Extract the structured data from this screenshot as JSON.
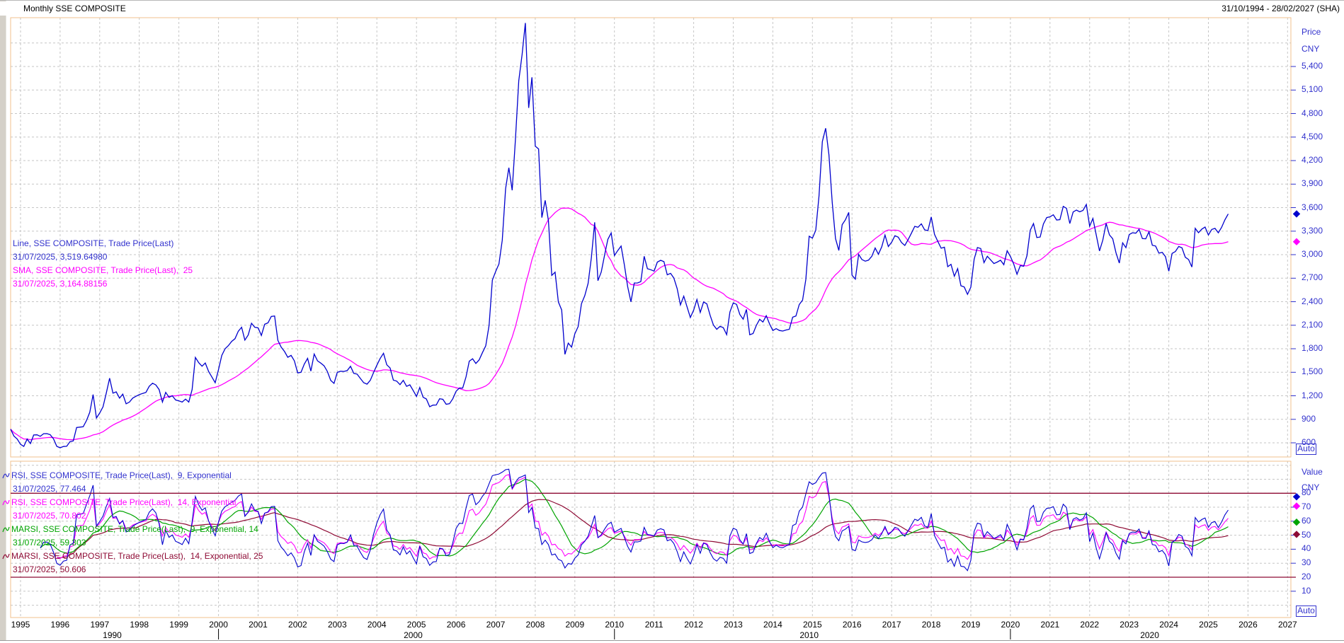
{
  "window": {
    "title": "Monthly SSE COMPOSITE",
    "date_range": "31/10/1994 - 28/02/2027 (SHA)"
  },
  "main_panel": {
    "legend": [
      {
        "label": "Line, SSE COMPOSITE, Trade Price(Last)",
        "value_line": "31/07/2025, 3,519.64980",
        "color": "#3232cd"
      },
      {
        "label": "SMA, SSE COMPOSITE, Trade Price(Last),  25",
        "value_line": "31/07/2025, 3,164.88156",
        "color": "#ff00ff"
      }
    ],
    "axis": {
      "title": "Price",
      "unit": "CNY",
      "auto_label": "Auto",
      "ticks": [
        "5,400",
        "5,100",
        "4,800",
        "4,500",
        "4,200",
        "3,900",
        "3,600",
        "3,300",
        "3,000",
        "2,700",
        "2,400",
        "2,100",
        "1,800",
        "1,500",
        "1,200",
        "900",
        "600"
      ]
    },
    "markers": [
      {
        "value": 3519.6498,
        "color": "#0000cd"
      },
      {
        "value": 3164.88156,
        "color": "#ff00ff"
      }
    ]
  },
  "rsi_panel": {
    "legend": [
      {
        "label": "RSI, SSE COMPOSITE, Trade Price(Last),  9, Exponential",
        "value_line": "31/07/2025, 77.464",
        "color": "#3232cd"
      },
      {
        "label": "RSI, SSE COMPOSITE, Trade Price(Last),  14, Exponential",
        "value_line": "31/07/2025, 70.802",
        "color": "#ff00ff"
      },
      {
        "label": "MARSI, SSE COMPOSITE, Trade Price(Last),  9, Exponential, 14",
        "value_line": "31/07/2025, 59.303",
        "color": "#00a400"
      },
      {
        "label": "MARSI, SSE COMPOSITE, Trade Price(Last),  14, Exponential, 25",
        "value_line": "31/07/2025, 50.606",
        "color": "#8e0a34"
      }
    ],
    "axis": {
      "title": "Value",
      "unit": "CNY",
      "auto_label": "Auto",
      "ticks": [
        "80",
        "70",
        "60",
        "50",
        "40",
        "30",
        "20",
        "10"
      ]
    },
    "markers": [
      {
        "value": 77.464,
        "color": "#0000cd"
      },
      {
        "value": 70.802,
        "color": "#ff00ff"
      },
      {
        "value": 59.303,
        "color": "#00a400"
      },
      {
        "value": 50.606,
        "color": "#8e0a34"
      }
    ]
  },
  "time_axis": {
    "years": [
      "1995",
      "1996",
      "1997",
      "1998",
      "1999",
      "2000",
      "2001",
      "2002",
      "2003",
      "2004",
      "2005",
      "2006",
      "2007",
      "2008",
      "2009",
      "2010",
      "2011",
      "2012",
      "2013",
      "2014",
      "2015",
      "2016",
      "2017",
      "2018",
      "2019",
      "2020",
      "2021",
      "2022",
      "2023",
      "2024",
      "2025",
      "2026",
      "2027"
    ],
    "decade_labels": [
      {
        "label": "1990",
        "center_year": 1997.4
      },
      {
        "label": "2000",
        "center_year": 2005
      },
      {
        "label": "2010",
        "center_year": 2015
      },
      {
        "label": "2020",
        "center_year": 2023.6
      }
    ],
    "decade_tick_years": [
      2000,
      2010,
      2020
    ]
  },
  "chart_data": {
    "type": "line",
    "title": "Monthly SSE COMPOSITE",
    "x_start": {
      "year": 1994,
      "month": 10
    },
    "x_end": {
      "year": 2027,
      "month": 2
    },
    "price_axis": {
      "min": 600,
      "max": 5400,
      "step": 300
    },
    "value_axis": {
      "min": 0,
      "max": 100,
      "step": 10,
      "overbought": 80,
      "oversold": 20
    },
    "grid": true,
    "series": [
      {
        "name": "SSE COMPOSITE Trade Price(Last)",
        "color": "#0000cd",
        "last_value": 3519.6498,
        "monthly_close": [
          774,
          686,
          648,
          580,
          554,
          648,
          591,
          700,
          702,
          683,
          716,
          717,
          704,
          650,
          555,
          537,
          553,
          556,
          615,
          624,
          795,
          800,
          805,
          885,
          990,
          1215,
          917,
          980,
          1060,
          1234,
          1425,
          1233,
          1250,
          1170,
          1221,
          1098,
          1120,
          1170,
          1194,
          1214,
          1230,
          1243,
          1320,
          1360,
          1339,
          1279,
          1120,
          1243,
          1180,
          1200,
          1147,
          1135,
          1120,
          1158,
          1120,
          1279,
          1689,
          1622,
          1577,
          1618,
          1510,
          1440,
          1367,
          1535,
          1714,
          1800,
          1840,
          1894,
          1928,
          2023,
          2074,
          1910,
          1975,
          2125,
          2073,
          2066,
          1970,
          2112,
          2130,
          2212,
          2218,
          1907,
          1820,
          1765,
          1691,
          1715,
          1646,
          1491,
          1500,
          1603,
          1677,
          1515,
          1732,
          1646,
          1617,
          1582,
          1510,
          1397,
          1358,
          1499,
          1513,
          1510,
          1521,
          1576,
          1486,
          1476,
          1421,
          1367,
          1348,
          1397,
          1497,
          1590,
          1676,
          1742,
          1595,
          1555,
          1399,
          1387,
          1342,
          1397,
          1320,
          1340,
          1267,
          1191,
          1306,
          1181,
          1159,
          1060,
          1081,
          1083,
          1162,
          1155,
          1092,
          1099,
          1161,
          1258,
          1299,
          1298,
          1440,
          1641,
          1672,
          1612,
          1658,
          1752,
          1838,
          2099,
          2675,
          2786,
          2881,
          3184,
          3841,
          4109,
          3821,
          4471,
          5218,
          5552,
          5955,
          4872,
          5262,
          4384,
          4348,
          3473,
          3693,
          3433,
          2736,
          2776,
          2397,
          2294,
          1729,
          1871,
          1821,
          1991,
          2083,
          2373,
          2477,
          2633,
          2959,
          3412,
          2668,
          2779,
          2995,
          3195,
          3277,
          2989,
          3052,
          3109,
          2871,
          2592,
          2398,
          2638,
          2639,
          2656,
          2979,
          2820,
          2808,
          2790,
          2905,
          2928,
          2911,
          2743,
          2762,
          2701,
          2567,
          2359,
          2470,
          2333,
          2199,
          2293,
          2428,
          2263,
          2396,
          2372,
          2225,
          2103,
          2048,
          2086,
          2068,
          1980,
          2269,
          2385,
          2366,
          2237,
          2177,
          2301,
          1979,
          1994,
          2098,
          2175,
          2141,
          2221,
          2116,
          2033,
          2056,
          2033,
          2026,
          2039,
          2048,
          2202,
          2217,
          2364,
          2420,
          2683,
          3235,
          3210,
          3310,
          3748,
          4442,
          4612,
          4277,
          3664,
          3206,
          3053,
          3383,
          3445,
          3539,
          2738,
          2688,
          3004,
          2938,
          2917,
          2930,
          2979,
          3085,
          3005,
          3100,
          3250,
          3104,
          3159,
          3242,
          3223,
          3155,
          3117,
          3192,
          3273,
          3361,
          3349,
          3393,
          3317,
          3307,
          3481,
          3259,
          3169,
          3082,
          3095,
          2847,
          2876,
          2725,
          2821,
          2603,
          2588,
          2494,
          2585,
          2941,
          3091,
          3078,
          2898,
          2979,
          2933,
          2886,
          2905,
          2929,
          2872,
          3050,
          2977,
          2880,
          2750,
          2860,
          2852,
          2985,
          3310,
          3396,
          3218,
          3225,
          3392,
          3473,
          3483,
          3509,
          3442,
          3447,
          3615,
          3591,
          3397,
          3544,
          3568,
          3547,
          3564,
          3640,
          3362,
          3462,
          3252,
          3047,
          3186,
          3399,
          3253,
          3202,
          3024,
          2893,
          3151,
          3089,
          3256,
          3280,
          3273,
          3323,
          3205,
          3202,
          3291,
          3120,
          3110,
          3019,
          3030,
          2975,
          2789,
          3015,
          3041,
          3105,
          3087,
          2967,
          2938,
          2842,
          3336,
          3280,
          3326,
          3352,
          3251,
          3321,
          3336,
          3279,
          3347,
          3444,
          3519.65
        ]
      },
      {
        "name": "SMA 25",
        "color": "#ff00ff",
        "derived": "sma",
        "period": 25,
        "last_value": 3164.88156
      },
      {
        "name": "RSI 9 Exponential",
        "color": "#0000cd",
        "derived": "rsi",
        "period": 9,
        "last_value": 77.464
      },
      {
        "name": "RSI 14 Exponential",
        "color": "#ff00ff",
        "derived": "rsi",
        "period": 14,
        "last_value": 70.802
      },
      {
        "name": "MARSI 9 Exponential 14",
        "color": "#00a400",
        "derived": "ma_of_rsi",
        "rsi_period": 9,
        "ma_period": 14,
        "last_value": 59.303
      },
      {
        "name": "MARSI 14 Exponential 25",
        "color": "#8e0a34",
        "derived": "ma_of_rsi",
        "rsi_period": 14,
        "ma_period": 25,
        "last_value": 50.606
      }
    ]
  }
}
